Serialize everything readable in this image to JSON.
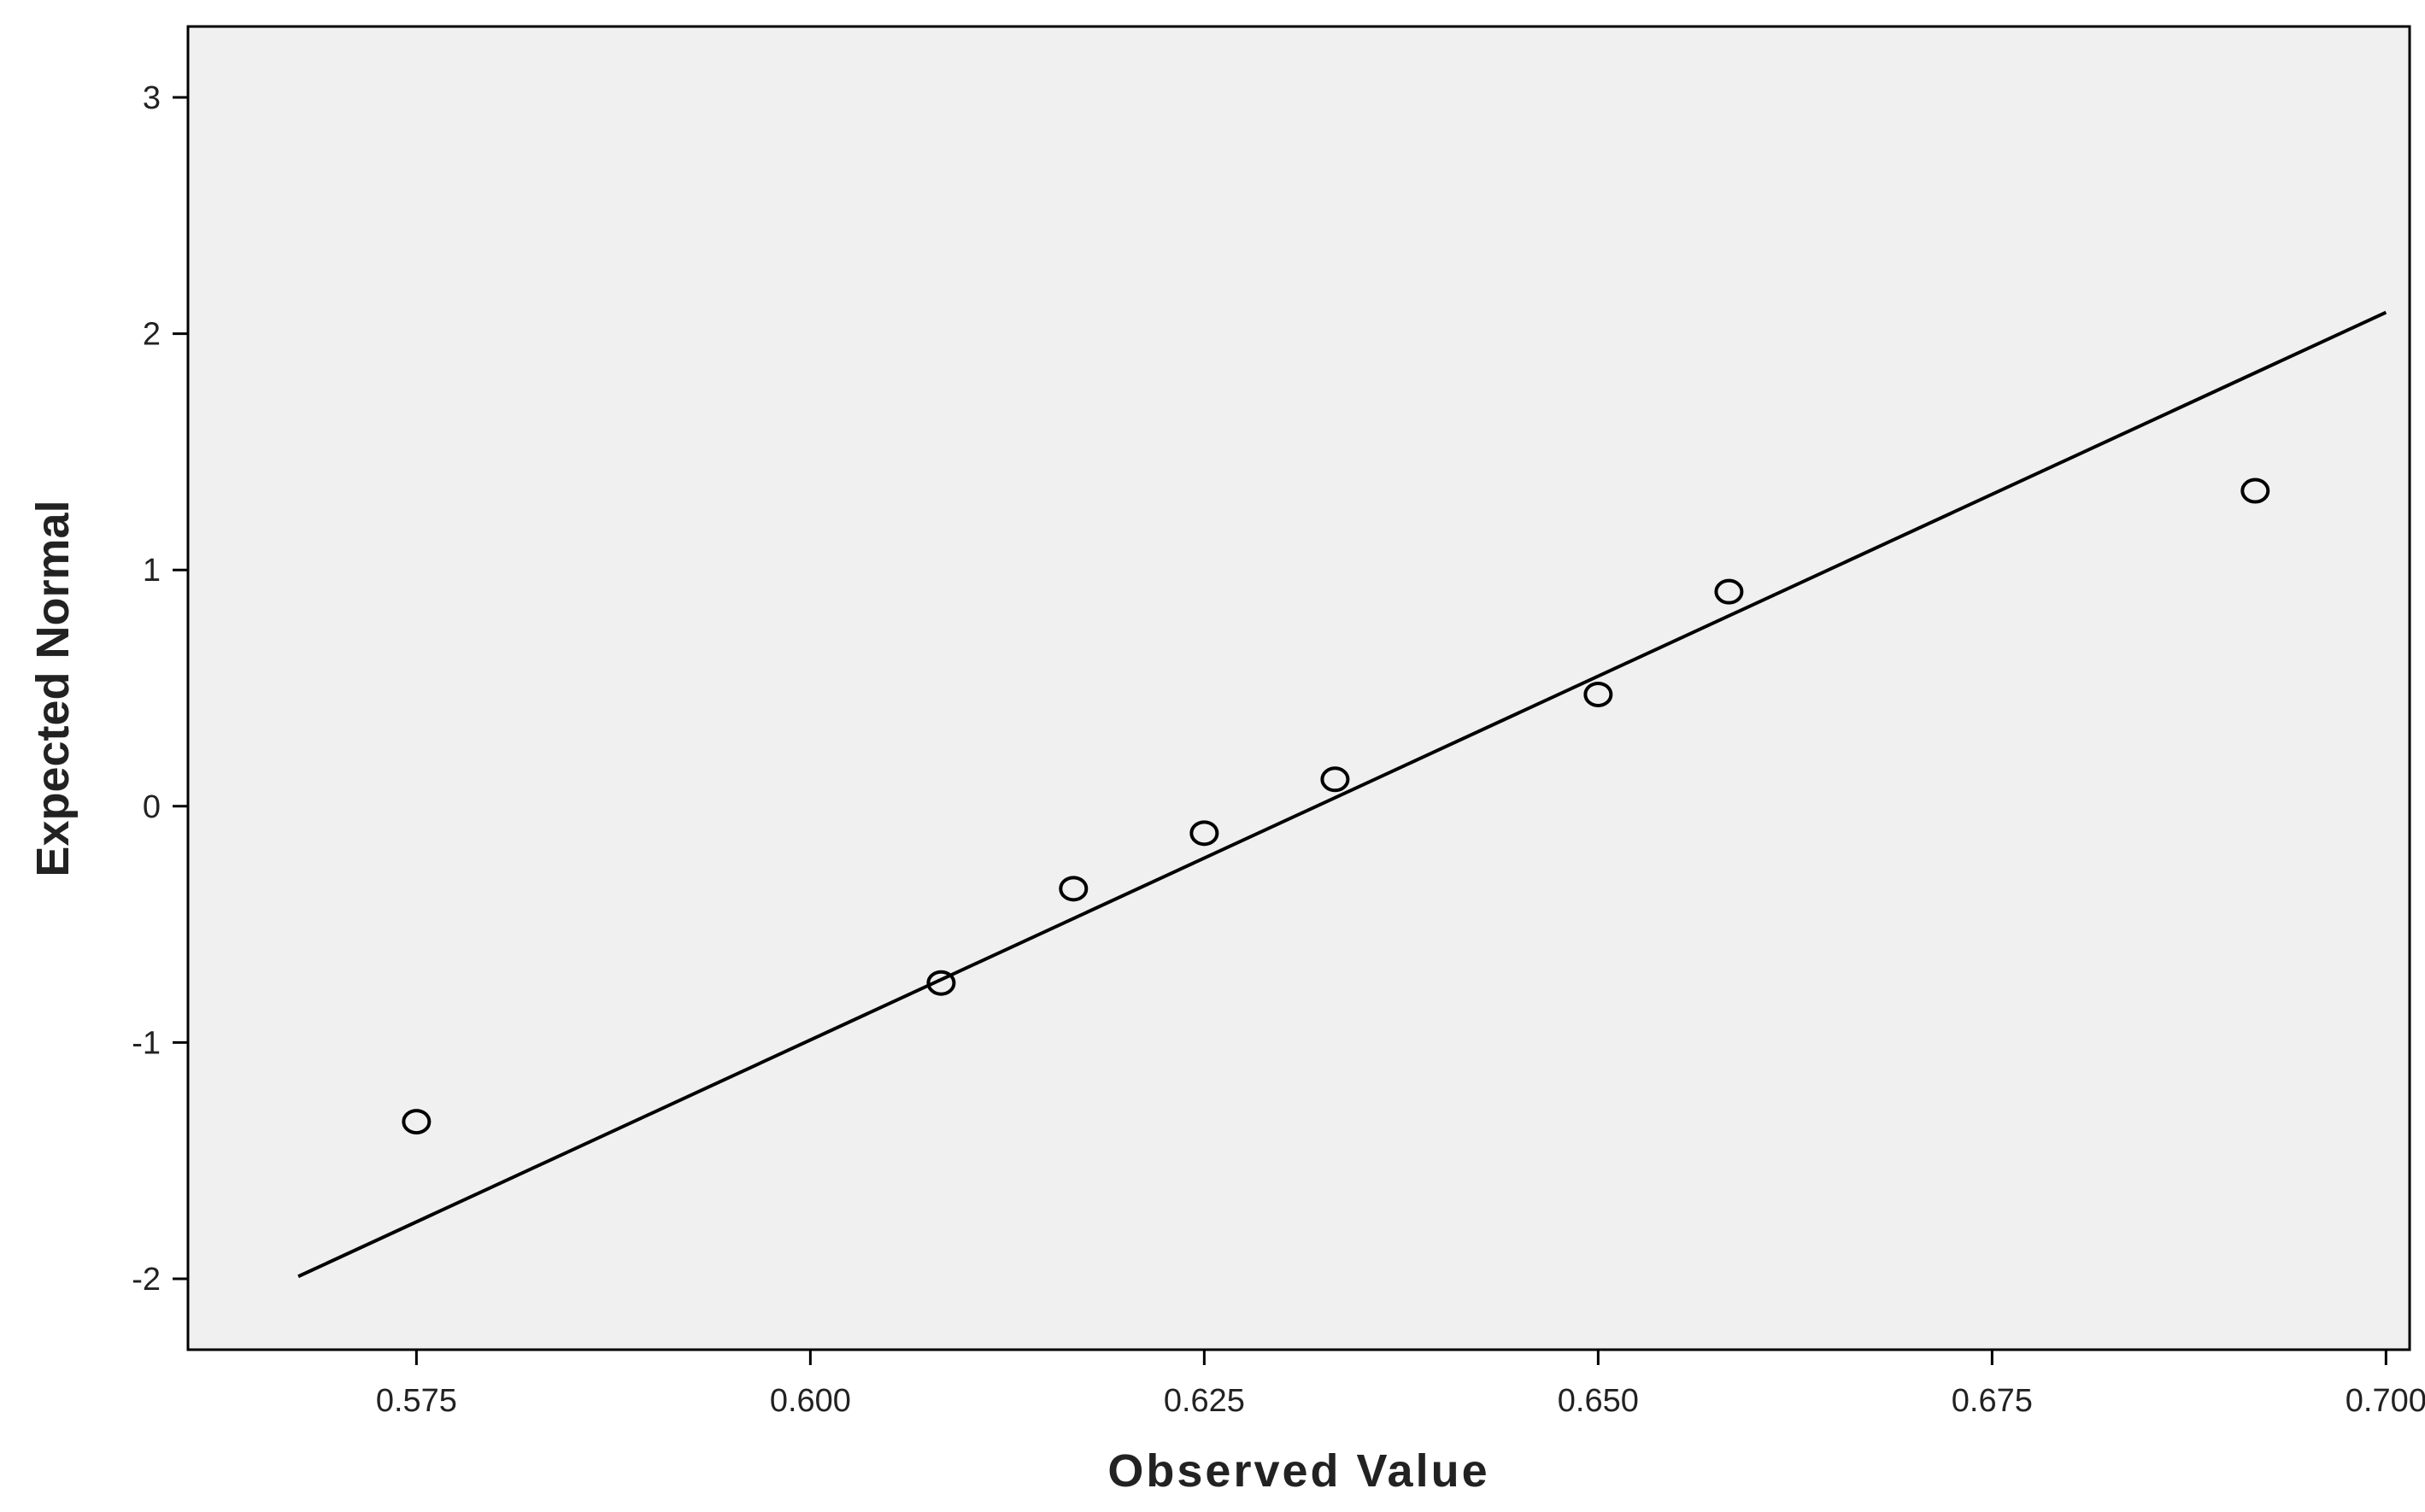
{
  "chart_data": {
    "type": "scatter",
    "title": "",
    "xlabel": "Observed Value",
    "ylabel": "Expected Normal",
    "xlim": [
      0.5605,
      0.7015
    ],
    "ylim": [
      -2.3,
      3.3
    ],
    "x_ticks": [
      0.575,
      0.6,
      0.625,
      0.65,
      0.675,
      0.7
    ],
    "x_tick_labels": [
      "0.575",
      "0.600",
      "0.625",
      "0.650",
      "0.675",
      "0.700"
    ],
    "y_ticks": [
      -2,
      -1,
      0,
      1,
      2,
      3
    ],
    "y_tick_labels": [
      "-2",
      "-1",
      "0",
      "1",
      "2",
      "3"
    ],
    "grid": false,
    "legend": "none",
    "series": [
      {
        "points": [
          {
            "x": 0.575,
            "y": -1.335
          },
          {
            "x": 0.6083,
            "y": -0.748
          },
          {
            "x": 0.6167,
            "y": -0.349
          },
          {
            "x": 0.625,
            "y": -0.114
          },
          {
            "x": 0.6333,
            "y": 0.114
          },
          {
            "x": 0.65,
            "y": 0.473
          },
          {
            "x": 0.6583,
            "y": 0.908
          },
          {
            "x": 0.6917,
            "y": 1.335
          }
        ]
      }
    ],
    "reference_line": {
      "x": [
        0.5675,
        0.7
      ],
      "y": [
        -1.99,
        2.09
      ]
    },
    "colors": {
      "plot_background": "#f0f0f0",
      "page_background": "#ffffff",
      "axis": "#000000",
      "marker_stroke": "#000000",
      "line": "#000000"
    }
  }
}
